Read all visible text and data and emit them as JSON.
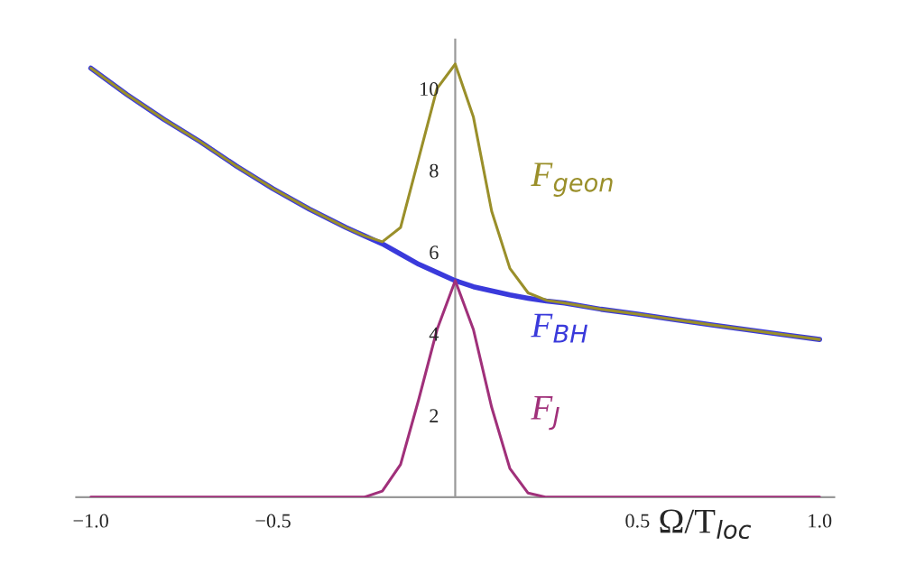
{
  "chart_data": {
    "type": "line",
    "xlabel": "Ω/T$_{loc}$",
    "x": [
      -1.0,
      -0.9,
      -0.8,
      -0.7,
      -0.6,
      -0.5,
      -0.4,
      -0.3,
      -0.25,
      -0.2,
      -0.15,
      -0.1,
      -0.05,
      0.0,
      0.05,
      0.1,
      0.15,
      0.2,
      0.25,
      0.3,
      0.4,
      0.5,
      0.6,
      0.7,
      0.8,
      0.9,
      1.0
    ],
    "series": [
      {
        "name": "F$_{geon}$",
        "color": "#9a8f2a",
        "values": [
          10.5,
          9.85,
          9.25,
          8.7,
          8.1,
          7.55,
          7.05,
          6.6,
          6.4,
          6.25,
          6.6,
          8.3,
          10.0,
          10.6,
          9.3,
          7.0,
          5.6,
          5.0,
          4.82,
          4.75,
          4.6,
          4.48,
          4.35,
          4.22,
          4.1,
          3.98,
          3.86
        ]
      },
      {
        "name": "F$_{BH}$",
        "color": "#3a3adb",
        "values": [
          10.5,
          9.85,
          9.25,
          8.7,
          8.1,
          7.55,
          7.05,
          6.6,
          6.4,
          6.2,
          5.95,
          5.7,
          5.5,
          5.3,
          5.15,
          5.05,
          4.95,
          4.87,
          4.8,
          4.75,
          4.6,
          4.48,
          4.35,
          4.22,
          4.1,
          3.98,
          3.86
        ]
      },
      {
        "name": "F$_{J}$",
        "color": "#a0307a",
        "values": [
          0,
          0,
          0,
          0,
          0,
          0,
          0,
          0,
          0,
          0.15,
          0.8,
          2.4,
          4.1,
          5.3,
          4.1,
          2.2,
          0.7,
          0.1,
          0,
          0,
          0,
          0,
          0,
          0,
          0,
          0,
          0
        ]
      }
    ],
    "xlim": [
      -1.04,
      1.04
    ],
    "ylim": [
      0,
      11.2
    ],
    "xticks": [
      {
        "value": -1.0,
        "label": "−1.0"
      },
      {
        "value": -0.5,
        "label": "−0.5"
      },
      0.5,
      {
        "value": 1.0,
        "label": "1.0"
      }
    ],
    "yticks": [
      2,
      4,
      6,
      8,
      10
    ],
    "grid": false,
    "legend": false
  }
}
